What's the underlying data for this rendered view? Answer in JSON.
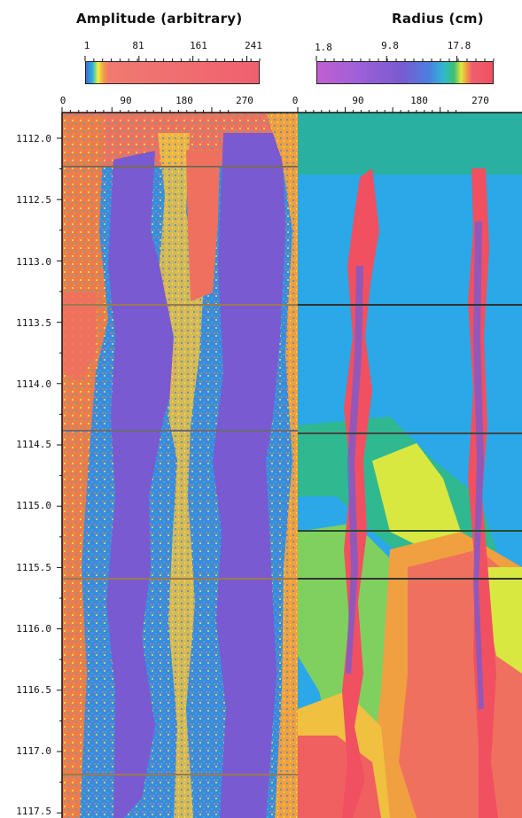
{
  "chart_data": [
    {
      "type": "heatmap",
      "title": "Amplitude (arbitrary)",
      "colorbar_ticks": [
        "1",
        "81",
        "161",
        "241"
      ],
      "colorbar_values": [
        1,
        81,
        161,
        241
      ],
      "colorbar_range": [
        1,
        260
      ],
      "x_ticks": [
        "0",
        "90",
        "180",
        "270"
      ],
      "x_values": [
        0,
        90,
        180,
        270
      ],
      "x_range": [
        0,
        360
      ],
      "y_ticks": [
        "1112.0",
        "1112.5",
        "1113.0",
        "1113.5",
        "1114.0",
        "1114.5",
        "1115.0",
        "1115.5",
        "1116.0",
        "1116.5",
        "1117.0",
        "1117.5"
      ],
      "y_values": [
        1112.0,
        1112.5,
        1113.0,
        1113.5,
        1114.0,
        1114.5,
        1115.0,
        1115.5,
        1116.0,
        1116.5,
        1117.0,
        1117.5
      ],
      "colormap": [
        "#f06070",
        "#f07a4a",
        "#f0c040",
        "#f0f040",
        "#80d060",
        "#30b8d0",
        "#3a8ae0",
        "#7a5ad0"
      ]
    },
    {
      "type": "heatmap",
      "title": "Radius (cm)",
      "colorbar_ticks": [
        "1.8",
        "9.8",
        "17.8"
      ],
      "colorbar_values": [
        1.8,
        9.8,
        17.8
      ],
      "colorbar_range": [
        1.8,
        22
      ],
      "x_ticks": [
        "0",
        "90",
        "180",
        "270"
      ],
      "x_values": [
        0,
        90,
        180,
        270
      ],
      "x_range": [
        0,
        360
      ],
      "colormap": [
        "#c060d0",
        "#8a60d8",
        "#5a70e0",
        "#2aa8e8",
        "#30b890",
        "#d8e840",
        "#f0a040",
        "#f05060"
      ]
    }
  ]
}
